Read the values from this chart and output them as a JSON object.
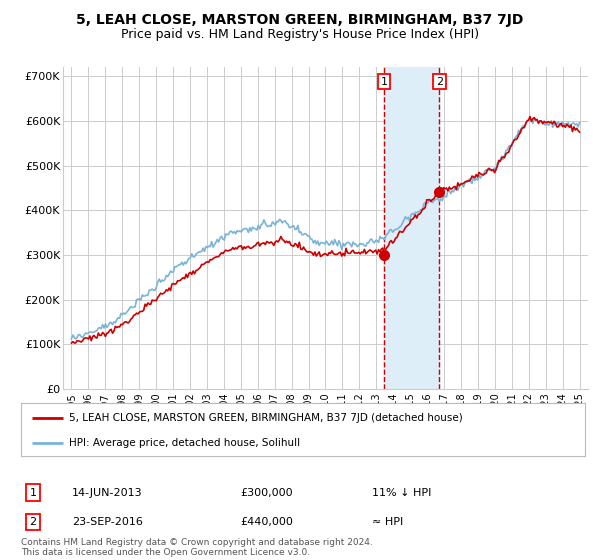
{
  "title": "5, LEAH CLOSE, MARSTON GREEN, BIRMINGHAM, B37 7JD",
  "subtitle": "Price paid vs. HM Land Registry's House Price Index (HPI)",
  "yticks": [
    0,
    100000,
    200000,
    300000,
    400000,
    500000,
    600000,
    700000
  ],
  "ytick_labels": [
    "£0",
    "£100K",
    "£200K",
    "£300K",
    "£400K",
    "£500K",
    "£600K",
    "£700K"
  ],
  "ylim": [
    0,
    720000
  ],
  "xlim_start": 1994.5,
  "xlim_end": 2025.5,
  "sale1_date": 2013.45,
  "sale1_price": 300000,
  "sale1_label": "1",
  "sale2_date": 2016.73,
  "sale2_price": 440000,
  "sale2_label": "2",
  "hpi_color": "#7ab4d8",
  "price_color": "#cc0000",
  "sale_marker_color": "#cc0000",
  "highlight_fill": "#ddeef8",
  "highlight_edge": "#cc0000",
  "background_color": "#ffffff",
  "grid_color": "#cccccc",
  "legend_entry1": "5, LEAH CLOSE, MARSTON GREEN, BIRMINGHAM, B37 7JD (detached house)",
  "legend_entry2": "HPI: Average price, detached house, Solihull",
  "info1_num": "1",
  "info1_date": "14-JUN-2013",
  "info1_price": "£300,000",
  "info1_hpi": "11% ↓ HPI",
  "info2_num": "2",
  "info2_date": "23-SEP-2016",
  "info2_price": "£440,000",
  "info2_hpi": "≈ HPI",
  "footer": "Contains HM Land Registry data © Crown copyright and database right 2024.\nThis data is licensed under the Open Government Licence v3.0.",
  "title_fontsize": 10,
  "subtitle_fontsize": 9
}
